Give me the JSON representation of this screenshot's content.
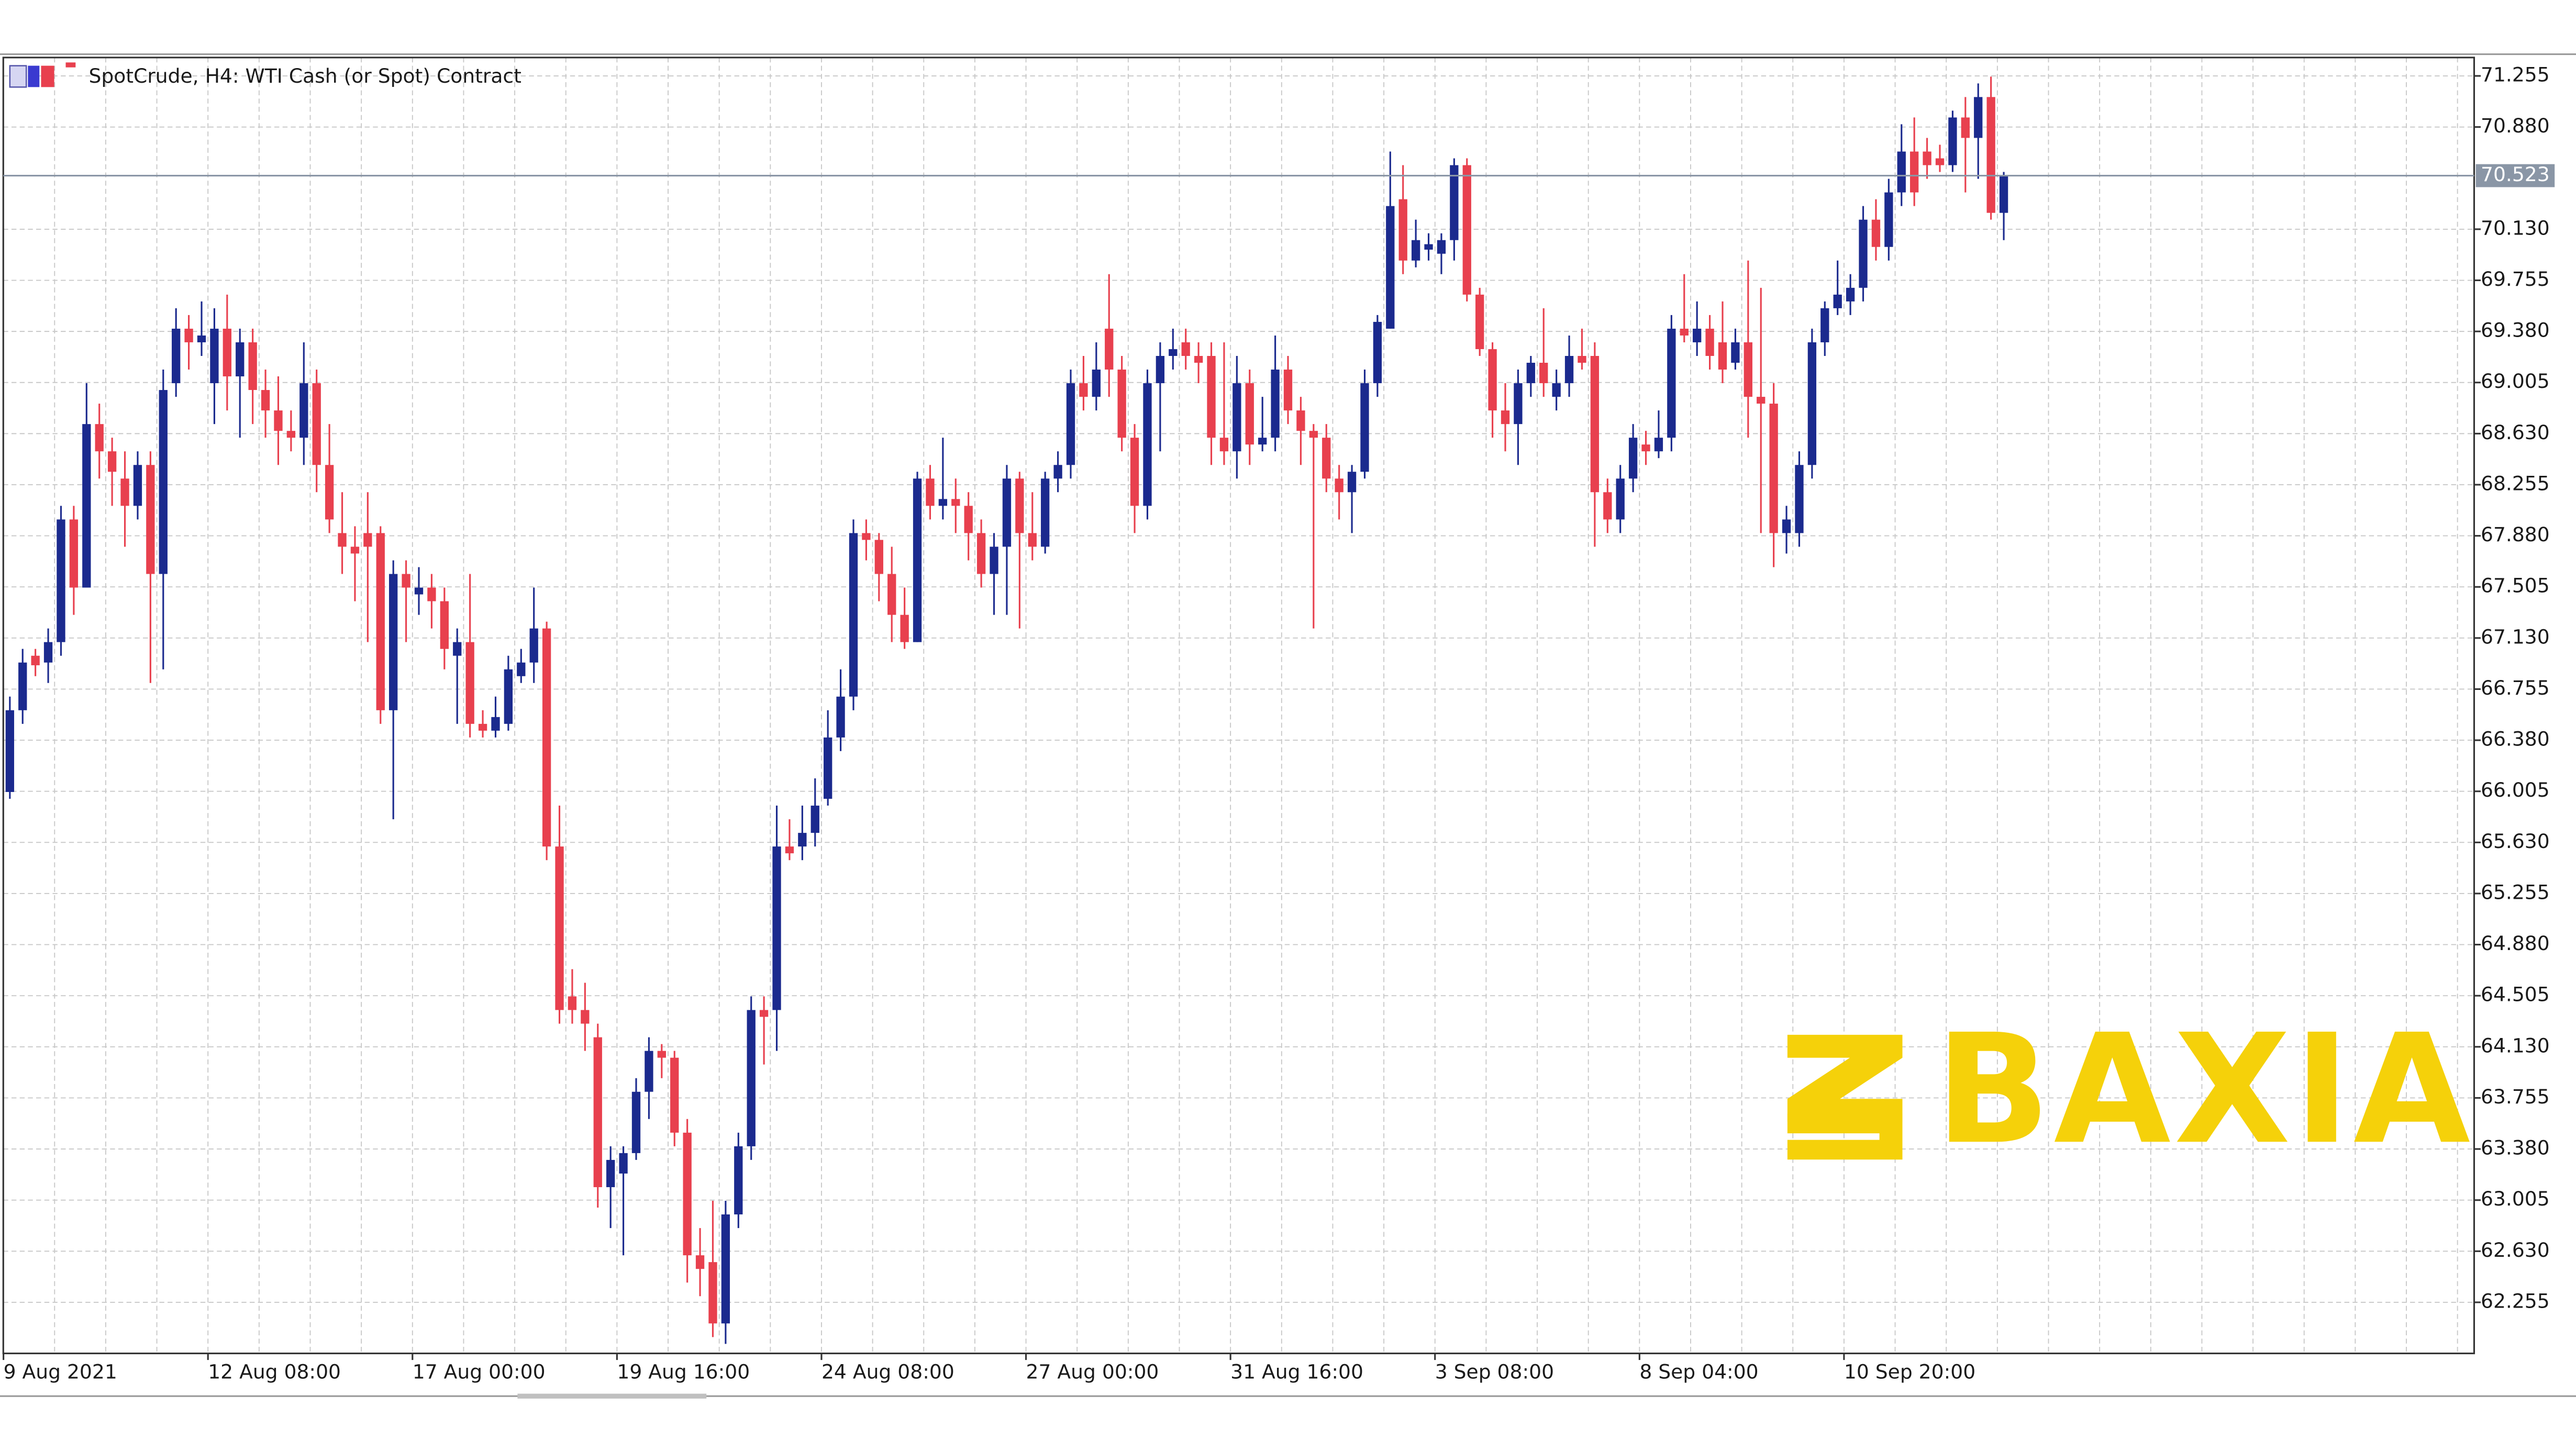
{
  "chart_data": {
    "type": "candlestick",
    "title": "SpotCrude, H4:  WTI Cash (or Spot) Contract",
    "watermark": "BAXIA",
    "up_color": "#1b2a8e",
    "down_color": "#e8404e",
    "grid": true,
    "last_price": 70.523,
    "ylim": [
      61.88,
      71.39
    ],
    "yticks": [
      71.255,
      {
        "value": 70.88,
        "label": "70.880"
      },
      {
        "value": 70.13,
        "label": "70.130"
      },
      69.755,
      {
        "value": 69.38,
        "label": "69.380"
      },
      69.005,
      {
        "value": 68.63,
        "label": "68.630"
      },
      68.255,
      {
        "value": 67.88,
        "label": "67.880"
      },
      67.505,
      {
        "value": 67.13,
        "label": "67.130"
      },
      66.755,
      {
        "value": 66.38,
        "label": "66.380"
      },
      66.005,
      {
        "value": 65.63,
        "label": "65.630"
      },
      65.255,
      {
        "value": 64.88,
        "label": "64.880"
      },
      64.505,
      {
        "value": 64.13,
        "label": "64.130"
      },
      63.755,
      {
        "value": 63.38,
        "label": "63.380"
      },
      63.005,
      {
        "value": 62.63,
        "label": "62.630"
      },
      62.255
    ],
    "categories": [
      "9 Aug 2021",
      null,
      null,
      null,
      null,
      null,
      null,
      null,
      null,
      null,
      null,
      null,
      null,
      null,
      null,
      null,
      "12 Aug 08:00",
      null,
      null,
      null,
      null,
      null,
      null,
      null,
      null,
      null,
      null,
      null,
      null,
      null,
      null,
      null,
      "17 Aug 00:00",
      null,
      null,
      null,
      null,
      null,
      null,
      null,
      null,
      null,
      null,
      null,
      null,
      null,
      null,
      null,
      "19 Aug 16:00",
      null,
      null,
      null,
      null,
      null,
      null,
      null,
      null,
      null,
      null,
      null,
      null,
      null,
      null,
      null,
      "24 Aug 08:00",
      null,
      null,
      null,
      null,
      null,
      null,
      null,
      null,
      null,
      null,
      null,
      null,
      null,
      null,
      null,
      "27 Aug 00:00",
      null,
      null,
      null,
      null,
      null,
      null,
      null,
      null,
      null,
      null,
      null,
      null,
      null,
      null,
      null,
      "31 Aug 16:00",
      null,
      null,
      null,
      null,
      null,
      null,
      null,
      null,
      null,
      null,
      null,
      null,
      null,
      null,
      null,
      "3 Sep 08:00",
      null,
      null,
      null,
      null,
      null,
      null,
      null,
      null,
      null,
      null,
      null,
      null,
      null,
      null,
      null,
      "8 Sep 04:00",
      null,
      null,
      null,
      null,
      null,
      null,
      null,
      null,
      null,
      null,
      null,
      null,
      null,
      null,
      null,
      "10 Sep 20:00",
      null,
      null,
      null,
      null,
      null,
      null,
      null,
      null,
      null,
      null,
      null,
      null
    ],
    "ohlc": [
      [
        66.0,
        66.7,
        65.95,
        66.6
      ],
      [
        66.6,
        67.05,
        66.5,
        66.95
      ],
      [
        67.0,
        67.05,
        66.85,
        66.93
      ],
      [
        66.95,
        67.2,
        66.8,
        67.1
      ],
      [
        67.1,
        68.1,
        67.0,
        68.0
      ],
      [
        68.0,
        68.1,
        67.3,
        67.5
      ],
      [
        67.5,
        69.0,
        67.5,
        68.7
      ],
      [
        68.7,
        68.85,
        68.3,
        68.5
      ],
      [
        68.5,
        68.6,
        68.1,
        68.35
      ],
      [
        68.3,
        68.5,
        67.8,
        68.1
      ],
      [
        68.1,
        68.5,
        68.0,
        68.4
      ],
      [
        68.4,
        68.5,
        66.8,
        67.6
      ],
      [
        67.6,
        69.1,
        66.9,
        68.95
      ],
      [
        69.0,
        69.55,
        68.9,
        69.4
      ],
      [
        69.4,
        69.5,
        69.1,
        69.3
      ],
      [
        69.3,
        69.6,
        69.2,
        69.35
      ],
      [
        69.0,
        69.55,
        68.7,
        69.4
      ],
      [
        69.4,
        69.65,
        68.8,
        69.05
      ],
      [
        69.05,
        69.4,
        68.6,
        69.3
      ],
      [
        69.3,
        69.4,
        68.7,
        68.95
      ],
      [
        68.95,
        69.1,
        68.6,
        68.8
      ],
      [
        68.8,
        69.05,
        68.4,
        68.65
      ],
      [
        68.65,
        68.8,
        68.5,
        68.6
      ],
      [
        68.6,
        69.3,
        68.4,
        69.0
      ],
      [
        69.0,
        69.1,
        68.2,
        68.4
      ],
      [
        68.4,
        68.7,
        67.9,
        68.0
      ],
      [
        67.9,
        68.2,
        67.6,
        67.8
      ],
      [
        67.8,
        67.95,
        67.4,
        67.75
      ],
      [
        67.9,
        68.2,
        67.1,
        67.8
      ],
      [
        67.9,
        67.95,
        66.5,
        66.6
      ],
      [
        66.6,
        67.7,
        65.8,
        67.6
      ],
      [
        67.6,
        67.7,
        67.1,
        67.5
      ],
      [
        67.45,
        67.65,
        67.3,
        67.5
      ],
      [
        67.5,
        67.6,
        67.2,
        67.4
      ],
      [
        67.4,
        67.5,
        66.9,
        67.05
      ],
      [
        67.0,
        67.2,
        66.5,
        67.1
      ],
      [
        67.1,
        67.6,
        66.4,
        66.5
      ],
      [
        66.5,
        66.6,
        66.4,
        66.45
      ],
      [
        66.45,
        66.7,
        66.4,
        66.55
      ],
      [
        66.5,
        67.0,
        66.45,
        66.9
      ],
      [
        66.85,
        67.05,
        66.8,
        66.95
      ],
      [
        66.95,
        67.5,
        66.8,
        67.2
      ],
      [
        67.2,
        67.25,
        65.5,
        65.6
      ],
      [
        65.6,
        65.9,
        64.3,
        64.4
      ],
      [
        64.5,
        64.7,
        64.3,
        64.4
      ],
      [
        64.4,
        64.6,
        64.1,
        64.3
      ],
      [
        64.2,
        64.3,
        62.95,
        63.1
      ],
      [
        63.1,
        63.4,
        62.8,
        63.3
      ],
      [
        63.2,
        63.4,
        62.6,
        63.35
      ],
      [
        63.35,
        63.9,
        63.3,
        63.8
      ],
      [
        63.8,
        64.2,
        63.6,
        64.1
      ],
      [
        64.1,
        64.15,
        63.9,
        64.05
      ],
      [
        64.05,
        64.1,
        63.4,
        63.5
      ],
      [
        63.5,
        63.6,
        62.4,
        62.6
      ],
      [
        62.6,
        62.8,
        62.3,
        62.5
      ],
      [
        62.55,
        63.0,
        62.0,
        62.1
      ],
      [
        62.1,
        63.0,
        61.95,
        62.9
      ],
      [
        62.9,
        63.5,
        62.8,
        63.4
      ],
      [
        63.4,
        64.5,
        63.3,
        64.4
      ],
      [
        64.4,
        64.5,
        64.0,
        64.35
      ],
      [
        64.4,
        65.9,
        64.1,
        65.6
      ],
      [
        65.6,
        65.8,
        65.5,
        65.55
      ],
      [
        65.6,
        65.9,
        65.5,
        65.7
      ],
      [
        65.7,
        66.1,
        65.6,
        65.9
      ],
      [
        65.95,
        66.6,
        65.9,
        66.4
      ],
      [
        66.4,
        66.9,
        66.3,
        66.7
      ],
      [
        66.7,
        68.0,
        66.6,
        67.9
      ],
      [
        67.9,
        68.0,
        67.7,
        67.85
      ],
      [
        67.85,
        67.9,
        67.4,
        67.6
      ],
      [
        67.6,
        67.8,
        67.1,
        67.3
      ],
      [
        67.3,
        67.5,
        67.05,
        67.1
      ],
      [
        67.1,
        68.35,
        67.1,
        68.3
      ],
      [
        68.3,
        68.4,
        68.0,
        68.1
      ],
      [
        68.1,
        68.6,
        68.0,
        68.15
      ],
      [
        68.15,
        68.3,
        67.9,
        68.1
      ],
      [
        68.1,
        68.2,
        67.7,
        67.9
      ],
      [
        67.9,
        68.0,
        67.5,
        67.6
      ],
      [
        67.6,
        67.9,
        67.3,
        67.8
      ],
      [
        67.8,
        68.4,
        67.3,
        68.3
      ],
      [
        68.3,
        68.35,
        67.2,
        67.9
      ],
      [
        67.9,
        68.2,
        67.7,
        67.8
      ],
      [
        67.8,
        68.35,
        67.75,
        68.3
      ],
      [
        68.3,
        68.5,
        68.2,
        68.4
      ],
      [
        68.4,
        69.1,
        68.3,
        69.0
      ],
      [
        69.0,
        69.2,
        68.8,
        68.9
      ],
      [
        68.9,
        69.3,
        68.8,
        69.1
      ],
      [
        69.4,
        69.8,
        68.9,
        69.1
      ],
      [
        69.1,
        69.2,
        68.5,
        68.6
      ],
      [
        68.6,
        68.7,
        67.9,
        68.1
      ],
      [
        68.1,
        69.1,
        68.0,
        69.0
      ],
      [
        69.0,
        69.3,
        68.5,
        69.2
      ],
      [
        69.2,
        69.4,
        69.1,
        69.25
      ],
      [
        69.3,
        69.4,
        69.1,
        69.2
      ],
      [
        69.2,
        69.3,
        69.0,
        69.15
      ],
      [
        69.2,
        69.3,
        68.4,
        68.6
      ],
      [
        68.6,
        69.3,
        68.4,
        68.5
      ],
      [
        68.5,
        69.2,
        68.3,
        69.0
      ],
      [
        69.0,
        69.1,
        68.4,
        68.55
      ],
      [
        68.55,
        68.9,
        68.5,
        68.6
      ],
      [
        68.6,
        69.35,
        68.5,
        69.1
      ],
      [
        69.1,
        69.2,
        68.7,
        68.8
      ],
      [
        68.8,
        68.9,
        68.4,
        68.65
      ],
      [
        68.65,
        68.7,
        67.2,
        68.6
      ],
      [
        68.6,
        68.7,
        68.2,
        68.3
      ],
      [
        68.3,
        68.4,
        68.0,
        68.2
      ],
      [
        68.2,
        68.4,
        67.9,
        68.35
      ],
      [
        68.35,
        69.1,
        68.3,
        69.0
      ],
      [
        69.0,
        69.5,
        68.9,
        69.45
      ],
      [
        69.4,
        70.7,
        69.4,
        70.3
      ],
      [
        70.35,
        70.6,
        69.8,
        69.9
      ],
      [
        69.9,
        70.2,
        69.85,
        70.05
      ],
      [
        69.98,
        70.1,
        69.9,
        70.02
      ],
      [
        69.95,
        70.1,
        69.8,
        70.05
      ],
      [
        70.05,
        70.65,
        69.9,
        70.6
      ],
      [
        70.6,
        70.65,
        69.6,
        69.65
      ],
      [
        69.65,
        69.7,
        69.2,
        69.25
      ],
      [
        69.25,
        69.3,
        68.6,
        68.8
      ],
      [
        68.8,
        69.0,
        68.5,
        68.7
      ],
      [
        68.7,
        69.1,
        68.4,
        69.0
      ],
      [
        69.0,
        69.2,
        68.9,
        69.15
      ],
      [
        69.15,
        69.55,
        68.9,
        69.0
      ],
      [
        68.9,
        69.1,
        68.8,
        69.0
      ],
      [
        69.0,
        69.35,
        68.9,
        69.2
      ],
      [
        69.2,
        69.4,
        69.1,
        69.15
      ],
      [
        69.2,
        69.3,
        67.8,
        68.2
      ],
      [
        68.2,
        68.3,
        67.9,
        68.0
      ],
      [
        68.0,
        68.4,
        67.9,
        68.3
      ],
      [
        68.3,
        68.7,
        68.2,
        68.6
      ],
      [
        68.55,
        68.65,
        68.4,
        68.5
      ],
      [
        68.5,
        68.8,
        68.45,
        68.6
      ],
      [
        68.6,
        69.5,
        68.5,
        69.4
      ],
      [
        69.4,
        69.8,
        69.3,
        69.35
      ],
      [
        69.3,
        69.6,
        69.2,
        69.4
      ],
      [
        69.4,
        69.5,
        69.1,
        69.2
      ],
      [
        69.3,
        69.6,
        69.0,
        69.1
      ],
      [
        69.15,
        69.4,
        69.1,
        69.3
      ],
      [
        69.3,
        69.9,
        68.6,
        68.9
      ],
      [
        68.9,
        69.7,
        67.9,
        68.85
      ],
      [
        68.85,
        69.0,
        67.65,
        67.9
      ],
      [
        67.9,
        68.1,
        67.75,
        68.0
      ],
      [
        67.9,
        68.5,
        67.8,
        68.4
      ],
      [
        68.4,
        69.4,
        68.3,
        69.3
      ],
      [
        69.3,
        69.6,
        69.2,
        69.55
      ],
      [
        69.55,
        69.9,
        69.5,
        69.65
      ],
      [
        69.6,
        69.8,
        69.5,
        69.7
      ],
      [
        69.7,
        70.3,
        69.6,
        70.2
      ],
      [
        70.2,
        70.35,
        69.9,
        70.0
      ],
      [
        70.0,
        70.5,
        69.9,
        70.4
      ],
      [
        70.4,
        70.9,
        70.3,
        70.7
      ],
      [
        70.7,
        70.95,
        70.3,
        70.4
      ],
      [
        70.7,
        70.8,
        70.5,
        70.6
      ],
      [
        70.65,
        70.75,
        70.55,
        70.6
      ],
      [
        70.6,
        71.0,
        70.55,
        70.95
      ],
      [
        70.95,
        71.1,
        70.4,
        70.8
      ],
      [
        70.8,
        71.2,
        70.5,
        71.1
      ],
      [
        71.1,
        71.25,
        70.2,
        70.25
      ],
      [
        70.25,
        70.55,
        70.05,
        70.52
      ]
    ]
  }
}
